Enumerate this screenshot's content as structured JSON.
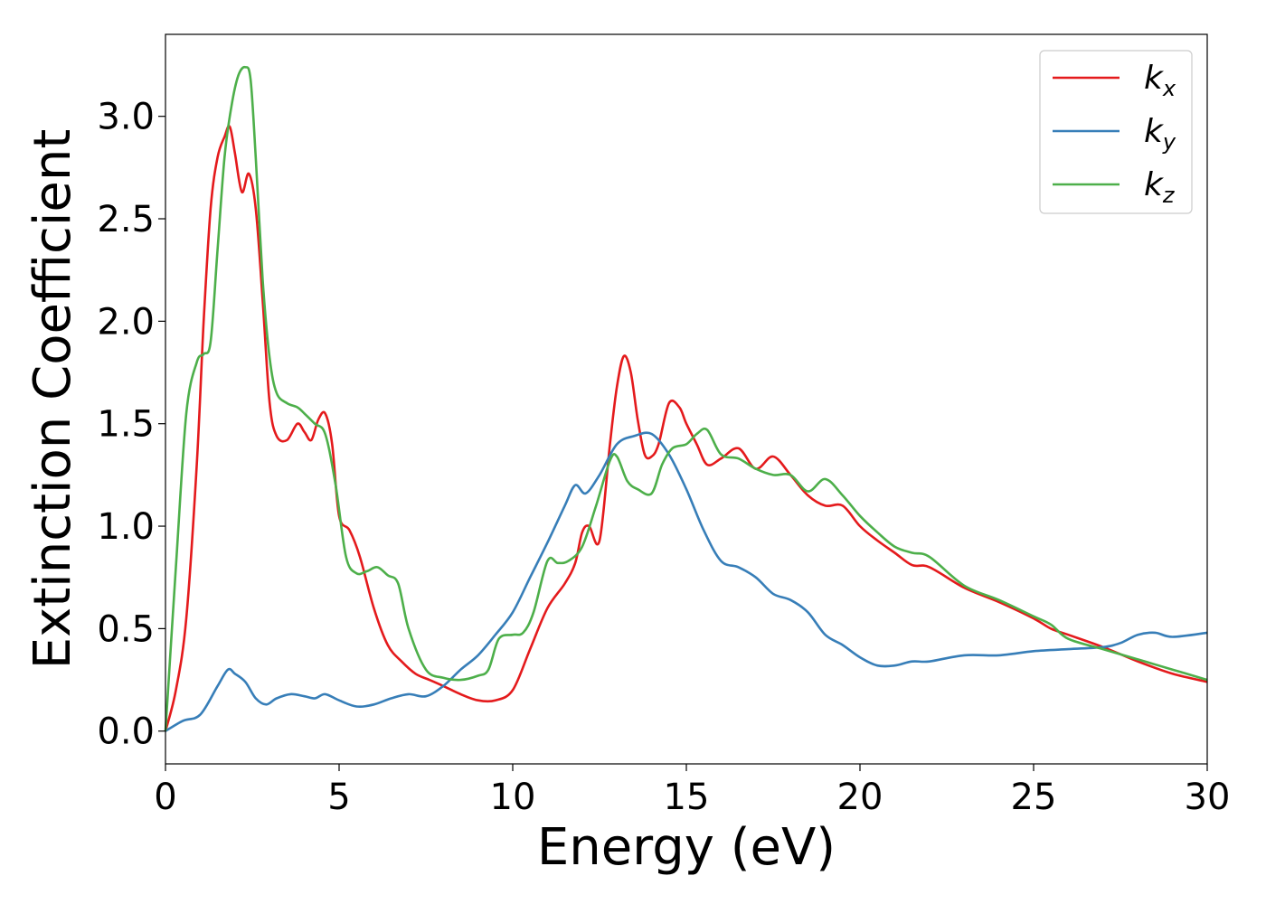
{
  "chart_data": {
    "type": "line",
    "title": "",
    "xlabel": "Energy (eV)",
    "ylabel": "Extinction Coefficient",
    "xlim": [
      0,
      30
    ],
    "ylim": [
      -0.16,
      3.4
    ],
    "xticks": [
      0,
      5,
      10,
      15,
      20,
      25,
      30
    ],
    "xtick_labels": [
      "0",
      "5",
      "10",
      "15",
      "20",
      "25",
      "30"
    ],
    "yticks": [
      0.0,
      0.5,
      1.0,
      1.5,
      2.0,
      2.5,
      3.0
    ],
    "ytick_labels": [
      "0.0",
      "0.5",
      "1.0",
      "1.5",
      "2.0",
      "2.5",
      "3.0"
    ],
    "grid": false,
    "legend_position": "top-right",
    "series": [
      {
        "name": "k_x",
        "label_base": "k",
        "label_sub": "x",
        "color": "#e41a1c",
        "x": [
          0,
          0.3,
          0.6,
          0.9,
          1.1,
          1.3,
          1.5,
          1.7,
          1.85,
          2.0,
          2.2,
          2.4,
          2.6,
          2.8,
          3.0,
          3.2,
          3.5,
          3.8,
          4.0,
          4.2,
          4.4,
          4.6,
          4.8,
          5.0,
          5.3,
          5.6,
          6.0,
          6.4,
          6.8,
          7.2,
          7.6,
          8.0,
          8.5,
          9.0,
          9.5,
          10.0,
          10.5,
          11.0,
          11.5,
          11.8,
          12.0,
          12.2,
          12.5,
          12.8,
          13.0,
          13.2,
          13.4,
          13.6,
          13.8,
          14.0,
          14.2,
          14.5,
          14.8,
          15.0,
          15.3,
          15.6,
          16.0,
          16.5,
          17.0,
          17.5,
          18.0,
          18.5,
          19.0,
          19.5,
          20.0,
          20.5,
          21.0,
          21.5,
          22.0,
          23.0,
          24.0,
          25.0,
          25.5,
          26.0,
          27.0,
          28.0,
          29.0,
          30.0
        ],
        "y": [
          0.0,
          0.2,
          0.55,
          1.3,
          2.0,
          2.55,
          2.8,
          2.9,
          2.95,
          2.82,
          2.63,
          2.72,
          2.55,
          2.1,
          1.6,
          1.44,
          1.42,
          1.5,
          1.46,
          1.42,
          1.52,
          1.55,
          1.4,
          1.05,
          0.98,
          0.85,
          0.6,
          0.42,
          0.34,
          0.28,
          0.25,
          0.22,
          0.18,
          0.15,
          0.15,
          0.2,
          0.4,
          0.6,
          0.72,
          0.82,
          0.97,
          1.0,
          0.93,
          1.4,
          1.68,
          1.83,
          1.75,
          1.52,
          1.35,
          1.34,
          1.4,
          1.6,
          1.58,
          1.5,
          1.4,
          1.3,
          1.33,
          1.38,
          1.28,
          1.34,
          1.25,
          1.15,
          1.1,
          1.1,
          1.0,
          0.93,
          0.87,
          0.81,
          0.8,
          0.7,
          0.63,
          0.55,
          0.5,
          0.47,
          0.41,
          0.34,
          0.28,
          0.24
        ]
      },
      {
        "name": "k_y",
        "label_base": "k",
        "label_sub": "y",
        "color": "#377eb8",
        "x": [
          0,
          0.5,
          1.0,
          1.5,
          1.8,
          2.0,
          2.3,
          2.6,
          2.9,
          3.2,
          3.6,
          4.0,
          4.3,
          4.6,
          5.0,
          5.5,
          6.0,
          6.5,
          7.0,
          7.5,
          8.0,
          8.5,
          9.0,
          9.5,
          10.0,
          10.5,
          11.0,
          11.5,
          11.8,
          12.1,
          12.5,
          13.0,
          13.5,
          14.0,
          14.5,
          15.0,
          15.5,
          16.0,
          16.5,
          17.0,
          17.5,
          18.0,
          18.5,
          19.0,
          19.5,
          20.0,
          20.5,
          21.0,
          21.5,
          22.0,
          23.0,
          24.0,
          25.0,
          26.0,
          27.0,
          27.5,
          28.0,
          28.5,
          29.0,
          30.0
        ],
        "y": [
          0.0,
          0.05,
          0.08,
          0.22,
          0.3,
          0.28,
          0.24,
          0.16,
          0.13,
          0.16,
          0.18,
          0.17,
          0.16,
          0.18,
          0.15,
          0.12,
          0.13,
          0.16,
          0.18,
          0.17,
          0.22,
          0.3,
          0.37,
          0.47,
          0.58,
          0.75,
          0.92,
          1.1,
          1.2,
          1.16,
          1.25,
          1.4,
          1.44,
          1.45,
          1.35,
          1.18,
          0.98,
          0.83,
          0.8,
          0.75,
          0.67,
          0.64,
          0.58,
          0.47,
          0.42,
          0.36,
          0.32,
          0.32,
          0.34,
          0.34,
          0.37,
          0.37,
          0.39,
          0.4,
          0.41,
          0.43,
          0.47,
          0.48,
          0.46,
          0.48
        ]
      },
      {
        "name": "k_z",
        "label_base": "k",
        "label_sub": "z",
        "color": "#4daf4a",
        "x": [
          0,
          0.3,
          0.6,
          0.9,
          1.1,
          1.3,
          1.5,
          1.7,
          1.9,
          2.1,
          2.3,
          2.45,
          2.6,
          2.8,
          3.0,
          3.2,
          3.5,
          3.8,
          4.0,
          4.3,
          4.6,
          4.9,
          5.2,
          5.5,
          5.8,
          6.1,
          6.4,
          6.7,
          7.0,
          7.5,
          8.0,
          8.5,
          9.0,
          9.3,
          9.6,
          10.0,
          10.3,
          10.6,
          11.0,
          11.3,
          11.6,
          12.0,
          12.4,
          12.8,
          13.0,
          13.3,
          13.6,
          14.0,
          14.3,
          14.6,
          15.0,
          15.3,
          15.6,
          16.0,
          16.5,
          17.0,
          17.5,
          18.0,
          18.5,
          19.0,
          19.5,
          20.0,
          20.5,
          21.0,
          21.5,
          22.0,
          23.0,
          24.0,
          25.0,
          25.5,
          26.0,
          27.0,
          28.0,
          29.0,
          30.0
        ],
        "y": [
          0.0,
          0.8,
          1.55,
          1.8,
          1.84,
          1.9,
          2.35,
          2.8,
          3.05,
          3.2,
          3.24,
          3.18,
          2.8,
          2.2,
          1.82,
          1.65,
          1.6,
          1.58,
          1.55,
          1.5,
          1.45,
          1.2,
          0.85,
          0.77,
          0.78,
          0.8,
          0.76,
          0.72,
          0.5,
          0.3,
          0.26,
          0.25,
          0.27,
          0.3,
          0.45,
          0.47,
          0.48,
          0.58,
          0.83,
          0.82,
          0.83,
          0.9,
          1.1,
          1.32,
          1.34,
          1.22,
          1.18,
          1.16,
          1.3,
          1.38,
          1.4,
          1.45,
          1.47,
          1.35,
          1.33,
          1.28,
          1.25,
          1.25,
          1.17,
          1.23,
          1.15,
          1.05,
          0.97,
          0.9,
          0.87,
          0.85,
          0.71,
          0.64,
          0.56,
          0.52,
          0.45,
          0.4,
          0.35,
          0.3,
          0.25
        ]
      }
    ]
  }
}
